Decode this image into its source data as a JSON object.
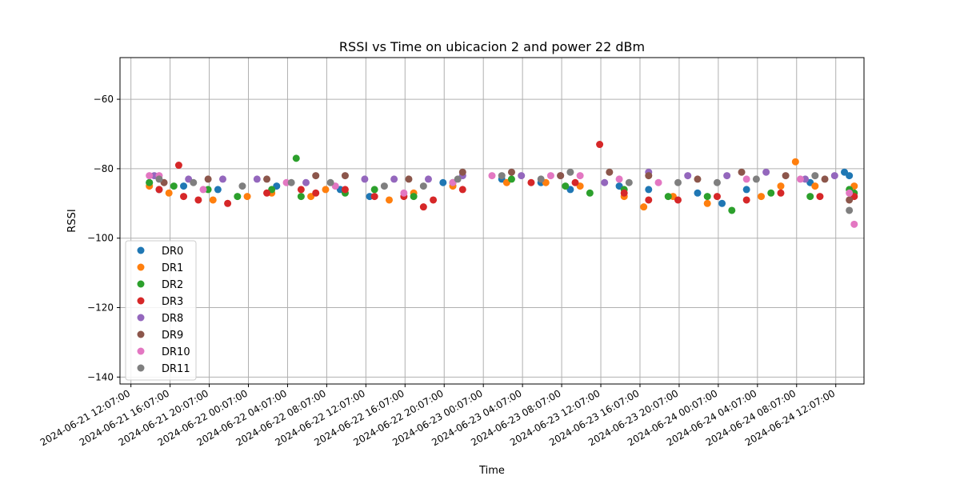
{
  "chart_data": {
    "type": "scatter",
    "title": "RSSI vs Time on ubicacion 2 and power 22 dBm",
    "xlabel": "Time",
    "ylabel": "RSSI",
    "grid": true,
    "legend_position": "lower-left",
    "xlim": [
      "2024-06-21 11:00",
      "2024-06-24 15:00"
    ],
    "ylim": [
      -142,
      -48
    ],
    "x_ticks": [
      "2024-06-21 12:07:00",
      "2024-06-21 16:07:00",
      "2024-06-21 20:07:00",
      "2024-06-22 00:07:00",
      "2024-06-22 04:07:00",
      "2024-06-22 08:07:00",
      "2024-06-22 12:07:00",
      "2024-06-22 16:07:00",
      "2024-06-22 20:07:00",
      "2024-06-23 00:07:00",
      "2024-06-23 04:07:00",
      "2024-06-23 08:07:00",
      "2024-06-23 12:07:00",
      "2024-06-23 16:07:00",
      "2024-06-23 20:07:00",
      "2024-06-24 00:07:00",
      "2024-06-24 04:07:00",
      "2024-06-24 08:07:00",
      "2024-06-24 12:07:00"
    ],
    "y_ticks": [
      -140,
      -120,
      -100,
      -80,
      -60
    ],
    "series": [
      {
        "name": "DR0",
        "color": "#1f77b4",
        "points": [
          [
            "2024-06-21 14:00",
            -84
          ],
          [
            "2024-06-21 15:00",
            -86
          ],
          [
            "2024-06-21 17:30",
            -85
          ],
          [
            "2024-06-21 21:00",
            -86
          ],
          [
            "2024-06-22 03:00",
            -85
          ],
          [
            "2024-06-22 09:30",
            -86
          ],
          [
            "2024-06-22 12:30",
            -88
          ],
          [
            "2024-06-22 20:00",
            -84
          ],
          [
            "2024-06-23 02:00",
            -83
          ],
          [
            "2024-06-23 06:00",
            -84
          ],
          [
            "2024-06-23 09:00",
            -86
          ],
          [
            "2024-06-23 14:00",
            -85
          ],
          [
            "2024-06-23 17:00",
            -86
          ],
          [
            "2024-06-23 22:00",
            -87
          ],
          [
            "2024-06-24 00:30",
            -90
          ],
          [
            "2024-06-24 03:00",
            -86
          ],
          [
            "2024-06-24 09:30",
            -84
          ],
          [
            "2024-06-24 13:00",
            -81
          ],
          [
            "2024-06-24 13:30",
            -82
          ]
        ]
      },
      {
        "name": "DR1",
        "color": "#ff7f0e",
        "points": [
          [
            "2024-06-21 14:00",
            -85
          ],
          [
            "2024-06-21 16:00",
            -87
          ],
          [
            "2024-06-21 20:30",
            -89
          ],
          [
            "2024-06-22 00:00",
            -88
          ],
          [
            "2024-06-22 02:30",
            -87
          ],
          [
            "2024-06-22 06:30",
            -88
          ],
          [
            "2024-06-22 08:00",
            -86
          ],
          [
            "2024-06-22 14:30",
            -89
          ],
          [
            "2024-06-22 17:00",
            -87
          ],
          [
            "2024-06-22 21:00",
            -85
          ],
          [
            "2024-06-23 02:30",
            -84
          ],
          [
            "2024-06-23 06:30",
            -84
          ],
          [
            "2024-06-23 10:00",
            -85
          ],
          [
            "2024-06-23 14:30",
            -88
          ],
          [
            "2024-06-23 16:30",
            -91
          ],
          [
            "2024-06-23 19:30",
            -88
          ],
          [
            "2024-06-23 23:00",
            -90
          ],
          [
            "2024-06-24 04:30",
            -88
          ],
          [
            "2024-06-24 06:30",
            -85
          ],
          [
            "2024-06-24 08:00",
            -78
          ],
          [
            "2024-06-24 10:00",
            -85
          ],
          [
            "2024-06-24 14:00",
            -85
          ]
        ]
      },
      {
        "name": "DR2",
        "color": "#2ca02c",
        "points": [
          [
            "2024-06-21 14:00",
            -84
          ],
          [
            "2024-06-21 16:30",
            -85
          ],
          [
            "2024-06-21 20:00",
            -86
          ],
          [
            "2024-06-21 23:00",
            -88
          ],
          [
            "2024-06-22 02:30",
            -86
          ],
          [
            "2024-06-22 05:00",
            -77
          ],
          [
            "2024-06-22 05:30",
            -88
          ],
          [
            "2024-06-22 10:00",
            -87
          ],
          [
            "2024-06-22 13:00",
            -86
          ],
          [
            "2024-06-22 17:00",
            -88
          ],
          [
            "2024-06-22 21:00",
            -84
          ],
          [
            "2024-06-23 03:00",
            -83
          ],
          [
            "2024-06-23 08:30",
            -85
          ],
          [
            "2024-06-23 11:00",
            -87
          ],
          [
            "2024-06-23 14:30",
            -86
          ],
          [
            "2024-06-23 19:00",
            -88
          ],
          [
            "2024-06-23 23:00",
            -88
          ],
          [
            "2024-06-24 01:30",
            -92
          ],
          [
            "2024-06-24 05:30",
            -87
          ],
          [
            "2024-06-24 09:30",
            -88
          ],
          [
            "2024-06-24 13:30",
            -86
          ],
          [
            "2024-06-24 14:00",
            -87
          ]
        ]
      },
      {
        "name": "DR3",
        "color": "#d62728",
        "points": [
          [
            "2024-06-21 15:00",
            -86
          ],
          [
            "2024-06-21 17:00",
            -79
          ],
          [
            "2024-06-21 17:30",
            -88
          ],
          [
            "2024-06-21 19:00",
            -89
          ],
          [
            "2024-06-21 22:00",
            -90
          ],
          [
            "2024-06-22 02:00",
            -87
          ],
          [
            "2024-06-22 05:30",
            -86
          ],
          [
            "2024-06-22 07:00",
            -87
          ],
          [
            "2024-06-22 10:00",
            -86
          ],
          [
            "2024-06-22 13:00",
            -88
          ],
          [
            "2024-06-22 16:00",
            -88
          ],
          [
            "2024-06-22 18:00",
            -91
          ],
          [
            "2024-06-22 19:00",
            -89
          ],
          [
            "2024-06-22 22:00",
            -86
          ],
          [
            "2024-06-23 05:00",
            -84
          ],
          [
            "2024-06-23 09:30",
            -84
          ],
          [
            "2024-06-23 12:00",
            -73
          ],
          [
            "2024-06-23 14:30",
            -87
          ],
          [
            "2024-06-23 17:00",
            -89
          ],
          [
            "2024-06-23 20:00",
            -89
          ],
          [
            "2024-06-24 00:00",
            -88
          ],
          [
            "2024-06-24 03:00",
            -89
          ],
          [
            "2024-06-24 06:30",
            -87
          ],
          [
            "2024-06-24 10:30",
            -88
          ],
          [
            "2024-06-24 14:00",
            -88
          ]
        ]
      },
      {
        "name": "DR8",
        "color": "#9467bd",
        "points": [
          [
            "2024-06-21 14:30",
            -82
          ],
          [
            "2024-06-21 18:00",
            -83
          ],
          [
            "2024-06-21 21:30",
            -83
          ],
          [
            "2024-06-22 01:00",
            -83
          ],
          [
            "2024-06-22 06:00",
            -84
          ],
          [
            "2024-06-22 12:00",
            -83
          ],
          [
            "2024-06-22 15:00",
            -83
          ],
          [
            "2024-06-22 18:30",
            -83
          ],
          [
            "2024-06-22 22:00",
            -82
          ],
          [
            "2024-06-23 04:00",
            -82
          ],
          [
            "2024-06-23 08:00",
            -82
          ],
          [
            "2024-06-23 12:30",
            -84
          ],
          [
            "2024-06-23 17:00",
            -81
          ],
          [
            "2024-06-23 21:00",
            -82
          ],
          [
            "2024-06-24 01:00",
            -82
          ],
          [
            "2024-06-24 05:00",
            -81
          ],
          [
            "2024-06-24 09:00",
            -83
          ],
          [
            "2024-06-24 12:00",
            -82
          ]
        ]
      },
      {
        "name": "DR9",
        "color": "#8c564b",
        "points": [
          [
            "2024-06-21 15:30",
            -84
          ],
          [
            "2024-06-21 20:00",
            -83
          ],
          [
            "2024-06-22 02:00",
            -83
          ],
          [
            "2024-06-22 07:00",
            -82
          ],
          [
            "2024-06-22 10:00",
            -82
          ],
          [
            "2024-06-22 16:30",
            -83
          ],
          [
            "2024-06-22 22:00",
            -81
          ],
          [
            "2024-06-23 03:00",
            -81
          ],
          [
            "2024-06-23 08:00",
            -82
          ],
          [
            "2024-06-23 13:00",
            -81
          ],
          [
            "2024-06-23 17:00",
            -82
          ],
          [
            "2024-06-23 22:00",
            -83
          ],
          [
            "2024-06-24 02:30",
            -81
          ],
          [
            "2024-06-24 07:00",
            -82
          ],
          [
            "2024-06-24 11:00",
            -83
          ],
          [
            "2024-06-24 13:30",
            -89
          ]
        ]
      },
      {
        "name": "DR10",
        "color": "#e377c2",
        "points": [
          [
            "2024-06-21 14:00",
            -82
          ],
          [
            "2024-06-21 15:00",
            -82
          ],
          [
            "2024-06-21 19:30",
            -86
          ],
          [
            "2024-06-22 04:00",
            -84
          ],
          [
            "2024-06-22 09:00",
            -85
          ],
          [
            "2024-06-22 16:00",
            -87
          ],
          [
            "2024-06-22 21:00",
            -84
          ],
          [
            "2024-06-23 01:00",
            -82
          ],
          [
            "2024-06-23 07:00",
            -82
          ],
          [
            "2024-06-23 10:00",
            -82
          ],
          [
            "2024-06-23 14:00",
            -83
          ],
          [
            "2024-06-23 18:00",
            -84
          ],
          [
            "2024-06-24 03:00",
            -83
          ],
          [
            "2024-06-24 08:30",
            -83
          ],
          [
            "2024-06-24 13:30",
            -87
          ],
          [
            "2024-06-24 14:00",
            -96
          ]
        ]
      },
      {
        "name": "DR11",
        "color": "#7f7f7f",
        "points": [
          [
            "2024-06-21 15:00",
            -83
          ],
          [
            "2024-06-21 18:30",
            -84
          ],
          [
            "2024-06-21 23:30",
            -85
          ],
          [
            "2024-06-22 04:30",
            -84
          ],
          [
            "2024-06-22 08:30",
            -84
          ],
          [
            "2024-06-22 14:00",
            -85
          ],
          [
            "2024-06-22 18:00",
            -85
          ],
          [
            "2024-06-22 21:30",
            -83
          ],
          [
            "2024-06-23 02:00",
            -82
          ],
          [
            "2024-06-23 06:00",
            -83
          ],
          [
            "2024-06-23 09:00",
            -81
          ],
          [
            "2024-06-23 15:00",
            -84
          ],
          [
            "2024-06-23 20:00",
            -84
          ],
          [
            "2024-06-24 00:00",
            -84
          ],
          [
            "2024-06-24 04:00",
            -83
          ],
          [
            "2024-06-24 10:00",
            -82
          ],
          [
            "2024-06-24 13:30",
            -92
          ]
        ]
      }
    ]
  }
}
